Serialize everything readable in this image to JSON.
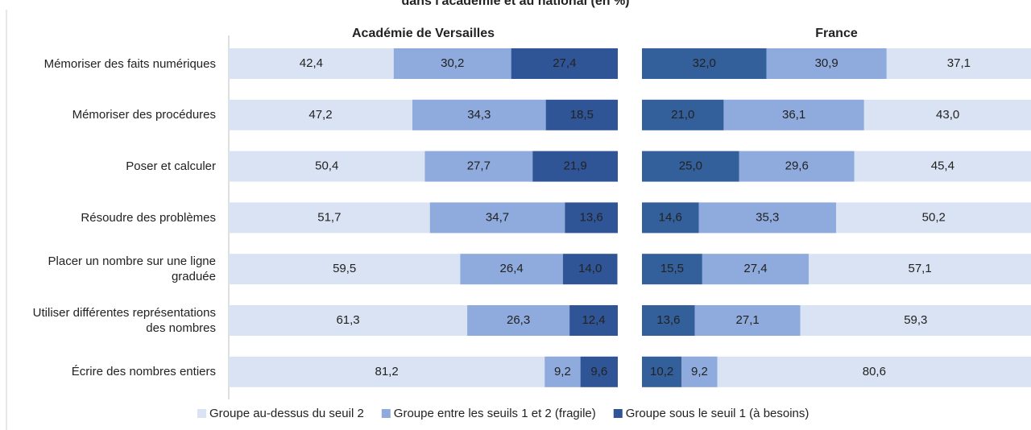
{
  "chart_data": [
    {
      "type": "bar",
      "title": "dans l'académie et au national (en %)",
      "subtitle": "Académie de Versailles",
      "categories": [
        "Mémoriser des faits numériques",
        "Mémoriser des procédures",
        "Poser et calculer",
        "Résoudre des problèmes",
        "Placer un nombre sur une ligne graduée",
        "Utiliser différentes représentations des nombres",
        "Écrire des nombres entiers"
      ],
      "xlim": [
        0,
        100
      ],
      "series": [
        {
          "name": "Groupe au-dessus du seuil 2",
          "color": "#dae3f3",
          "values": [
            42.4,
            47.2,
            50.4,
            51.7,
            59.5,
            61.3,
            81.2
          ],
          "value_labels": [
            "42,4",
            "47,2",
            "50,4",
            "51,7",
            "59,5",
            "61,3",
            "81,2"
          ]
        },
        {
          "name": "Groupe entre les seuils 1 et 2 (fragile)",
          "color": "#8faadc",
          "values": [
            30.2,
            34.3,
            27.7,
            34.7,
            26.4,
            26.3,
            9.2
          ],
          "value_labels": [
            "30,2",
            "34,3",
            "27,7",
            "34,7",
            "26,4",
            "26,3",
            "9,2"
          ]
        },
        {
          "name": "Groupe sous le seuil 1 (à besoins)",
          "color": "#2f5597",
          "values": [
            27.4,
            18.5,
            21.9,
            13.6,
            14.0,
            12.4,
            9.6
          ],
          "value_labels": [
            "27,4",
            "18,5",
            "21,9",
            "13,6",
            "14,0",
            "12,4",
            "9,6"
          ]
        }
      ]
    },
    {
      "type": "bar",
      "subtitle": "France",
      "xlim": [
        0,
        100
      ],
      "series": [
        {
          "color": "#335f9a",
          "values": [
            32.0,
            21.0,
            25.0,
            14.6,
            15.5,
            13.6,
            10.2
          ],
          "value_labels": [
            "32,0",
            "21,0",
            "25,0",
            "14,6",
            "15,5",
            "13,6",
            "10,2"
          ]
        },
        {
          "color": "#8faadc",
          "values": [
            30.9,
            36.1,
            29.6,
            35.3,
            27.4,
            27.1,
            9.2
          ],
          "value_labels": [
            "30,9",
            "36,1",
            "29,6",
            "35,3",
            "27,4",
            "27,1",
            "9,2"
          ]
        },
        {
          "color": "#dae3f3",
          "values": [
            37.1,
            43.0,
            45.4,
            50.2,
            57.1,
            59.3,
            80.6
          ],
          "value_labels": [
            "37,1",
            "43,0",
            "45,4",
            "50,2",
            "57,1",
            "59,3",
            "80,6"
          ]
        }
      ]
    }
  ]
}
